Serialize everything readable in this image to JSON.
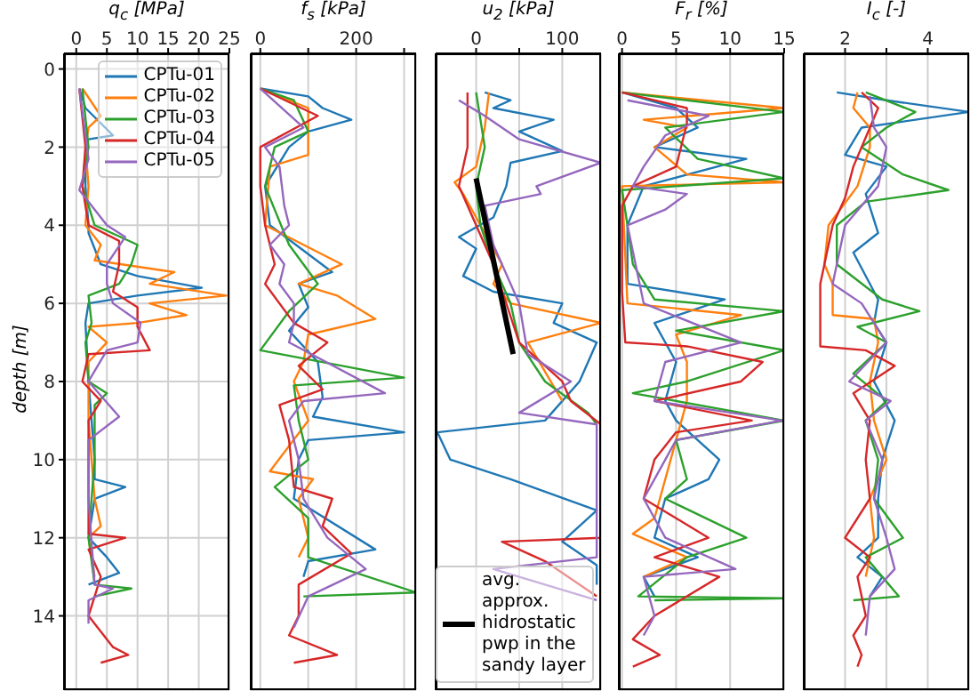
{
  "chart_data": [
    {
      "type": "line",
      "orientation": "horizontal",
      "xlabel": "q$_{c}$ [MPa]",
      "ylabel": "depth [m]",
      "xlim": [
        -2,
        25
      ],
      "xticks": [
        0,
        5,
        10,
        15,
        20,
        25
      ],
      "ylim": [
        15.9,
        -0.4
      ],
      "yticks": [
        0,
        2,
        4,
        6,
        8,
        10,
        12,
        14
      ],
      "grid": true,
      "legend": "top right",
      "series": [
        {
          "name": "CPTu-01",
          "color": "#1f77b4",
          "x": [
            0.5,
            1,
            1.7,
            1.8,
            2,
            3,
            4,
            4.2,
            5,
            5.3,
            5.6,
            5.8,
            6,
            6.5,
            8,
            9,
            10,
            10.5,
            10.7,
            11,
            12,
            12.5,
            12.9,
            13.2
          ],
          "values": [
            0.5,
            1.5,
            6,
            2,
            1.5,
            1.5,
            2,
            2,
            4,
            10,
            20.5,
            10,
            2,
            1.5,
            2,
            2.5,
            3,
            3,
            8,
            3,
            2,
            5,
            7,
            2
          ]
        },
        {
          "name": "CPTu-02",
          "color": "#ff7f0e",
          "x": [
            0.5,
            1.2,
            1.5,
            2,
            3,
            4,
            4.5,
            4.9,
            5.2,
            5.5,
            5.8,
            6,
            6.3,
            6.5,
            6.6,
            7,
            7.5,
            9,
            10,
            11,
            11.7,
            12,
            13
          ],
          "values": [
            1,
            4,
            2,
            1.5,
            2,
            1.5,
            4,
            3,
            16,
            12,
            24.5,
            12,
            18,
            10,
            2,
            5,
            2,
            2,
            2.5,
            3,
            4,
            2,
            3
          ]
        },
        {
          "name": "CPTu-03",
          "color": "#2ca02c",
          "x": [
            0.5,
            2,
            3,
            4,
            4.5,
            5,
            5.5,
            5.8,
            6.5,
            7,
            8,
            8.3,
            8.6,
            10,
            12,
            13.2,
            13.3,
            13.5
          ],
          "values": [
            1,
            2,
            1,
            3,
            10,
            9,
            7,
            2,
            2.5,
            1.5,
            2,
            5,
            3,
            3,
            2,
            3,
            9,
            3
          ]
        },
        {
          "name": "CPTu-04",
          "color": "#d62728",
          "x": [
            0.5,
            2,
            3,
            4,
            4.4,
            5,
            5.7,
            6.1,
            6.6,
            7.2,
            7.3,
            8,
            8.5,
            9,
            11.9,
            12,
            12.3,
            13,
            14,
            14.8,
            15,
            15.2
          ],
          "values": [
            0.5,
            1.5,
            1,
            2,
            7,
            7,
            6,
            10,
            10,
            12,
            2,
            1,
            4,
            2,
            2,
            8,
            2,
            4,
            2,
            6,
            8.5,
            4
          ]
        },
        {
          "name": "CPTu-05",
          "color": "#9467bd",
          "x": [
            0.5,
            2.3,
            3.1,
            4,
            4.3,
            5,
            5.5,
            6,
            6.5,
            7,
            7.2,
            8,
            8.9,
            9.5,
            11,
            13.2,
            13.3,
            13.6,
            14.2
          ],
          "values": [
            0.5,
            2,
            0.5,
            5,
            8,
            5,
            5,
            6,
            10.5,
            10,
            5,
            2,
            7,
            2,
            2,
            3,
            6,
            2,
            2
          ]
        }
      ]
    },
    {
      "type": "line",
      "orientation": "horizontal",
      "xlabel": "f$_{s}$ [kPa]",
      "xlim": [
        -20,
        325
      ],
      "xticks": [
        0,
        {
          "value": 100,
          "label": null
        },
        200,
        {
          "value": 300,
          "label": null
        }
      ],
      "ylim": [
        15.9,
        -0.4
      ],
      "yticks": [
        0,
        2,
        4,
        6,
        8,
        10,
        12,
        14
      ],
      "grid": true,
      "tick_labels": "x",
      "series": [
        {
          "color": "#1f77b4",
          "x": [
            0.5,
            0.7,
            1,
            1.3,
            1.6,
            2,
            3,
            4,
            5.2,
            5.5,
            6.1,
            6.7,
            7.5,
            8.4,
            8.9,
            9.3,
            9.5,
            10,
            11,
            12.3,
            12.6,
            13
          ],
          "values": [
            0,
            100,
            130,
            190,
            100,
            60,
            10,
            20,
            150,
            80,
            100,
            60,
            120,
            130,
            110,
            300,
            100,
            80,
            70,
            240,
            100,
            90
          ]
        },
        {
          "color": "#ff7f0e",
          "x": [
            0.5,
            1,
            1.5,
            2.2,
            2.5,
            4,
            5,
            5.5,
            5.8,
            6.4,
            6.8,
            7.5,
            8,
            9,
            10.3,
            10.5,
            11,
            12,
            12.5
          ],
          "values": [
            0,
            100,
            100,
            100,
            20,
            10,
            170,
            80,
            160,
            240,
            100,
            90,
            70,
            100,
            20,
            110,
            80,
            100,
            80
          ]
        },
        {
          "color": "#2ca02c",
          "x": [
            0.5,
            0.8,
            1.6,
            2,
            3,
            4.5,
            5.5,
            6.2,
            7.2,
            7.9,
            8.1,
            9,
            10,
            10.7,
            11.5,
            12.5,
            13.4,
            13.5
          ],
          "values": [
            0,
            70,
            100,
            30,
            10,
            60,
            120,
            60,
            0,
            300,
            70,
            80,
            100,
            30,
            100,
            100,
            325,
            90
          ]
        },
        {
          "color": "#d62728",
          "x": [
            0.5,
            1.2,
            2,
            3,
            4,
            5,
            5.5,
            6.5,
            7,
            7.6,
            8.2,
            8.6,
            9.5,
            10.7,
            11,
            11.7,
            12.4,
            13.2,
            14,
            14.5,
            15,
            15.2
          ],
          "values": [
            0,
            120,
            0,
            0,
            10,
            30,
            10,
            70,
            140,
            80,
            130,
            40,
            60,
            70,
            150,
            130,
            190,
            80,
            80,
            60,
            160,
            70
          ]
        },
        {
          "color": "#9467bd",
          "x": [
            0.5,
            1.5,
            2,
            2.5,
            3.5,
            4,
            4.5,
            5,
            5.5,
            6,
            6.5,
            7,
            8.3,
            8.5,
            9,
            10,
            11,
            12,
            12.8,
            13.5,
            14.3
          ],
          "values": [
            0,
            90,
            10,
            40,
            50,
            60,
            20,
            50,
            40,
            70,
            70,
            60,
            260,
            90,
            60,
            80,
            90,
            140,
            220,
            100,
            70
          ]
        }
      ]
    },
    {
      "type": "line",
      "orientation": "horizontal",
      "xlabel": "u$_{2}$ [kPa]",
      "xlim": [
        -47,
        145
      ],
      "xticks": [
        0,
        {
          "value": 50,
          "label": null
        },
        100
      ],
      "ylim": [
        15.9,
        -0.4
      ],
      "yticks": [
        0,
        2,
        4,
        6,
        8,
        10,
        12,
        14
      ],
      "grid": true,
      "tick_labels": "x",
      "legend": "bottom right",
      "series": [
        {
          "color": "#1f77b4",
          "x": [
            0.6,
            0.8,
            1,
            1.3,
            1.6,
            2.1,
            2.4,
            3,
            3.8,
            4.3,
            4.6,
            5.3,
            5.7,
            6,
            6.5,
            7,
            8,
            9,
            9.3,
            10,
            10.5,
            11.3,
            12.1,
            12.7,
            13.2
          ],
          "values": [
            10,
            40,
            20,
            90,
            50,
            100,
            40,
            35,
            20,
            -20,
            0,
            -15,
            20,
            100,
            90,
            140,
            120,
            80,
            -45,
            -30,
            40,
            140,
            100,
            140,
            140
          ]
        },
        {
          "color": "#ff7f0e",
          "x": [
            0.6,
            1.5,
            2.5,
            2.9,
            3.2,
            3.6,
            4,
            5,
            5.5,
            6,
            6.5,
            7,
            8.5
          ],
          "values": [
            15,
            10,
            0,
            -25,
            -15,
            -5,
            5,
            30,
            20,
            40,
            145,
            60,
            100
          ]
        },
        {
          "color": "#2ca02c",
          "x": [
            0.6,
            2,
            3,
            4,
            5,
            6,
            7,
            8,
            8.8,
            9.1
          ],
          "values": [
            0,
            10,
            0,
            5,
            20,
            40,
            50,
            80,
            130,
            140
          ]
        },
        {
          "color": "#d62728",
          "x": [
            0.6,
            2,
            3,
            4,
            5,
            6,
            7,
            8,
            8.5,
            9.1,
            12,
            12.1,
            12.6,
            13.5
          ],
          "values": [
            -10,
            -10,
            -20,
            0,
            20,
            35,
            50,
            100,
            110,
            145,
            145,
            30,
            80,
            140
          ]
        },
        {
          "color": "#9467bd",
          "x": [
            0.8,
            1.2,
            1.8,
            2.4,
            3,
            3.2,
            3.5,
            4.5,
            6,
            7.3,
            8,
            8.8,
            9.1,
            12.5,
            12.8,
            13.6
          ],
          "values": [
            -20,
            10,
            50,
            145,
            70,
            75,
            10,
            20,
            50,
            60,
            110,
            50,
            140,
            140,
            20,
            140
          ]
        },
        {
          "name": "avg. approx. hidrostatic pwp in the sandy layer",
          "color": "#000000",
          "x": [
            2.8,
            7.3
          ],
          "values": [
            0,
            43
          ]
        }
      ]
    },
    {
      "type": "line",
      "orientation": "horizontal",
      "xlabel": "F$_{r}$ [%]",
      "xlim": [
        -0.3,
        15
      ],
      "xticks": [
        0,
        5,
        10,
        15
      ],
      "ylim": [
        15.9,
        -0.4
      ],
      "yticks": [
        0,
        2,
        4,
        6,
        8,
        10,
        12,
        14
      ],
      "grid": true,
      "tick_labels": "x",
      "series": [
        {
          "color": "#1f77b4",
          "x": [
            0.6,
            1,
            1.5,
            2,
            2.3,
            3,
            4,
            5.5,
            5.9,
            6.5,
            7.5,
            8.5,
            9,
            10,
            10.5,
            11,
            12,
            12.5,
            13,
            13.5
          ],
          "values": [
            0,
            5,
            7,
            3,
            11.5,
            2,
            0.5,
            0.5,
            9.5,
            3,
            5,
            4,
            5,
            9,
            8,
            4,
            3,
            7,
            2,
            3
          ]
        },
        {
          "color": "#ff7f0e",
          "x": [
            0.6,
            1,
            1.3,
            1.5,
            2,
            2.7,
            2.9,
            3,
            6,
            6.3,
            6.8,
            7.5,
            8.5,
            9.5,
            11.5,
            11.9,
            12.5,
            13
          ],
          "values": [
            0,
            15,
            2,
            6,
            3,
            6,
            15,
            0,
            0.5,
            11,
            5,
            6,
            6,
            5,
            3,
            1,
            6,
            2
          ]
        },
        {
          "color": "#2ca02c",
          "x": [
            0.6,
            1.1,
            1.5,
            2.3,
            2.8,
            3.1,
            4,
            5,
            5.9,
            6.2,
            6.7,
            7.2,
            8,
            8.3,
            9,
            9.5,
            10.5,
            11,
            12,
            12.5,
            13.5,
            13.55,
            13.6
          ],
          "values": [
            0,
            15,
            4,
            7,
            15,
            0,
            0.5,
            1,
            3,
            15,
            5,
            15,
            6,
            1,
            15,
            5,
            6,
            4,
            11.5,
            6,
            1.5,
            15,
            3
          ]
        },
        {
          "color": "#d62728",
          "x": [
            0.6,
            1,
            1.4,
            2.5,
            3,
            3.5,
            5.7,
            7,
            7.1,
            7.5,
            8,
            8.5,
            9,
            9.3,
            10,
            11,
            12,
            12.5,
            13,
            14,
            14.6,
            15,
            15.3
          ],
          "values": [
            0,
            6,
            6,
            5,
            1,
            0,
            0,
            0.3,
            6,
            13,
            11,
            3,
            12,
            5,
            3,
            2,
            8,
            3,
            9,
            3,
            1,
            3.5,
            1
          ]
        },
        {
          "color": "#9467bd",
          "x": [
            0.8,
            1.2,
            1.7,
            2.5,
            3,
            3.2,
            3.6,
            4,
            6,
            7,
            7.5,
            8.5,
            9,
            9.5,
            10.5,
            11,
            12,
            12.8,
            13,
            14,
            14.5
          ],
          "values": [
            0.5,
            8,
            4,
            2,
            1,
            6,
            4,
            0.5,
            2,
            11,
            4,
            3,
            14.8,
            5,
            3,
            2,
            4,
            10.5,
            2,
            3,
            2
          ]
        }
      ]
    },
    {
      "type": "line",
      "orientation": "horizontal",
      "xlabel": "I$_{c}$ [-]",
      "xlim": [
        1,
        5
      ],
      "xticks": [
        2,
        {
          "value": 3,
          "label": null
        },
        4
      ],
      "ylim": [
        15.9,
        -0.4
      ],
      "yticks": [
        0,
        2,
        4,
        6,
        8,
        10,
        12,
        14
      ],
      "grid": true,
      "tick_labels": "x",
      "series": [
        {
          "color": "#1f77b4",
          "x": [
            0.6,
            0.8,
            1.1,
            1.5,
            2.2,
            2.5,
            3.2,
            4.2,
            4.7,
            5.9,
            6.5,
            7,
            8,
            9,
            10,
            11,
            12,
            12.5,
            13,
            13.5
          ],
          "values": [
            1.8,
            3,
            5,
            2.4,
            2,
            3,
            2.5,
            2.8,
            2.2,
            2.8,
            2.7,
            3,
            2.7,
            3.2,
            2.9,
            2.8,
            2.8,
            2.3,
            2.9,
            2.6
          ]
        },
        {
          "color": "#ff7f0e",
          "x": [
            0.6,
            1,
            1.5,
            2,
            3,
            4,
            5,
            5.5,
            6.3,
            6.4,
            7,
            8,
            9,
            10,
            11,
            12,
            13
          ],
          "values": [
            2.3,
            2.2,
            2.6,
            2.6,
            2.3,
            1.6,
            1.5,
            1.7,
            1.7,
            2.7,
            2.8,
            2.6,
            2.7,
            3,
            2.6,
            2.7,
            2.5
          ]
        },
        {
          "color": "#2ca02c",
          "x": [
            0.6,
            1.1,
            1.5,
            2,
            2.7,
            3.1,
            3.4,
            4,
            5,
            5.9,
            6.2,
            6.6,
            7,
            7.8,
            8.5,
            9,
            10,
            11,
            12,
            12.5,
            13.5,
            13.6
          ],
          "values": [
            2.5,
            3.7,
            3,
            2.4,
            3.4,
            4.5,
            2.5,
            1.8,
            1.8,
            2.9,
            3.8,
            2.3,
            3,
            2.2,
            3,
            2.5,
            2.8,
            2.7,
            3.4,
            2.5,
            3.3,
            2.2
          ]
        },
        {
          "color": "#d62728",
          "x": [
            0.6,
            1,
            1.5,
            2.5,
            3.3,
            4,
            5,
            5.5,
            7.1,
            7.2,
            7.6,
            8.3,
            9,
            10,
            11,
            12,
            12.5,
            13,
            14,
            14.5,
            15,
            15.3
          ],
          "values": [
            2.4,
            2.8,
            2.6,
            2.2,
            2,
            1.7,
            1.5,
            1.4,
            1.4,
            2.5,
            3.2,
            2.2,
            2.6,
            2.5,
            2.6,
            2,
            2.6,
            2.3,
            2.5,
            2.2,
            2.4,
            2.3
          ]
        },
        {
          "color": "#9467bd",
          "x": [
            0.7,
            1.5,
            2,
            3,
            4,
            5,
            5.5,
            6,
            7,
            8,
            8.5,
            9,
            10,
            11,
            12,
            12.8,
            13.5,
            14.5
          ],
          "values": [
            2.6,
            2.7,
            3,
            2.8,
            2,
            1.8,
            1.7,
            2.4,
            3,
            2.1,
            3.1,
            2.5,
            2.9,
            2.7,
            3,
            3.2,
            2.6,
            2.5
          ]
        }
      ]
    }
  ]
}
